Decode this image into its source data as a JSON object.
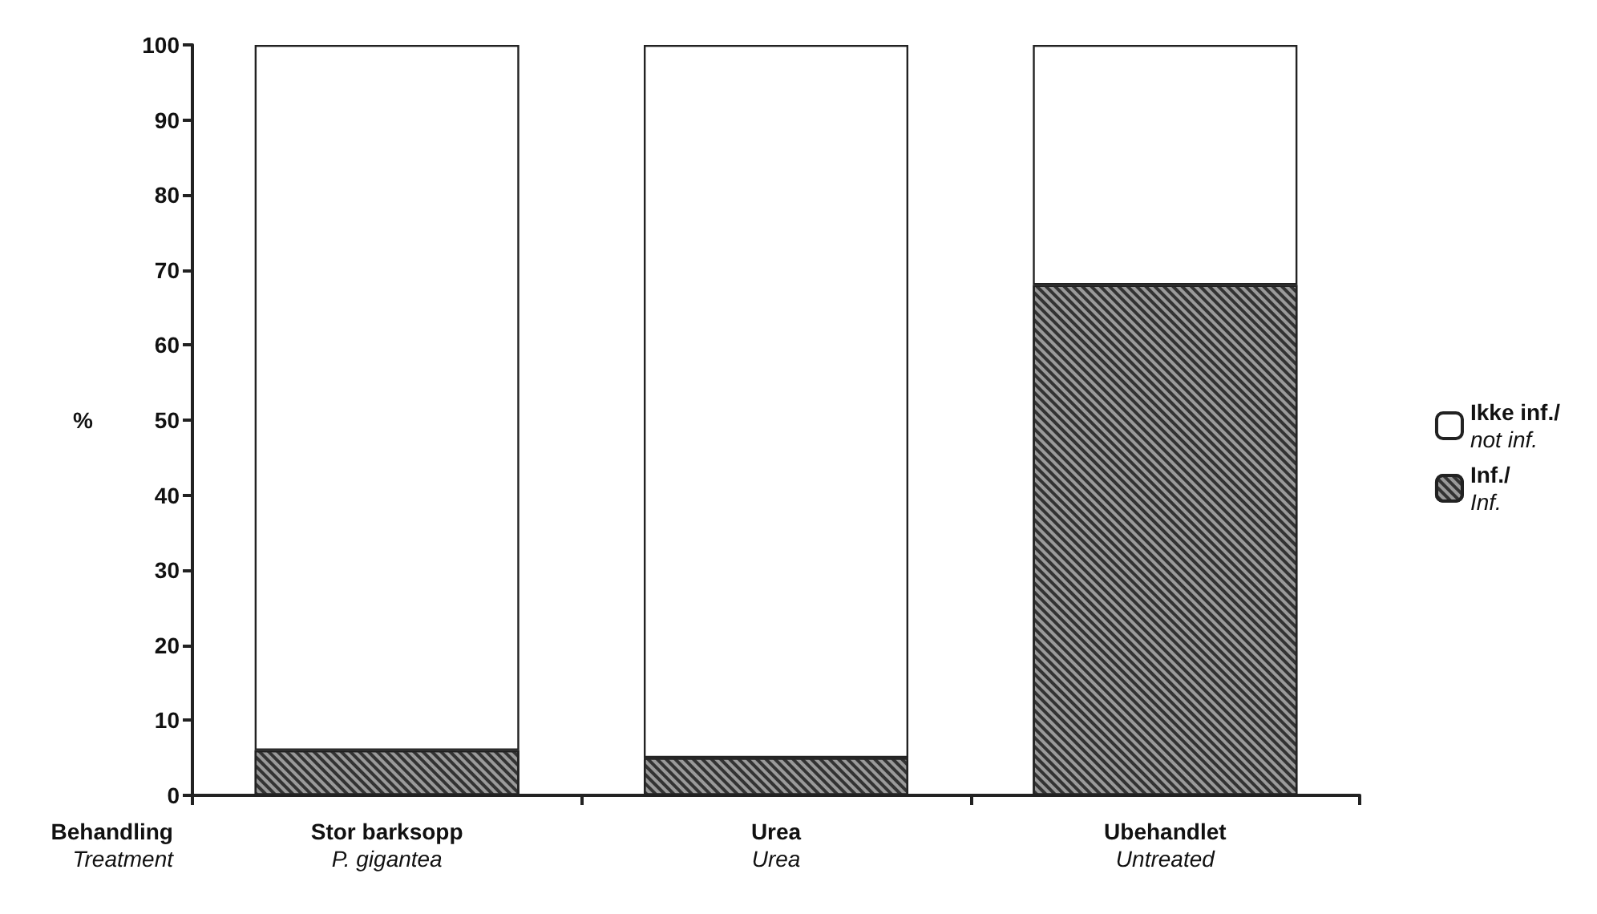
{
  "chart_data": {
    "type": "bar",
    "stacked": true,
    "xlabel": "Behandling\nTreatment",
    "ylabel": "%",
    "categories": [
      "Stor barksopp\nP. gigantea",
      "Urea\nUrea",
      "Ubehandlet\nUntreated"
    ],
    "series": [
      {
        "name": "Inf./\nInf.",
        "color": "#9a9a9a",
        "values": [
          6,
          5,
          68
        ]
      },
      {
        "name": "Ikke inf./\nnot inf.",
        "color": "#ffffff",
        "values": [
          94,
          95,
          32
        ]
      }
    ],
    "ylim": [
      0,
      100
    ],
    "yticks": [
      0,
      10,
      20,
      30,
      40,
      50,
      60,
      70,
      80,
      90,
      100
    ],
    "grid": false,
    "legend": "right"
  }
}
